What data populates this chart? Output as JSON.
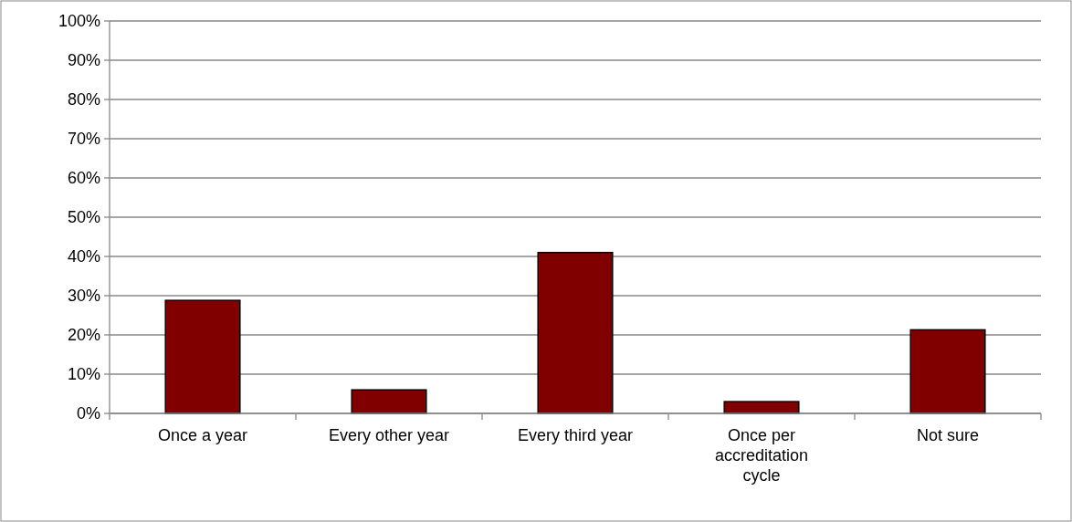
{
  "chart_data": {
    "type": "bar",
    "categories": [
      "Once a year",
      "Every other year",
      "Every third year",
      "Once per accreditation cycle",
      "Not sure"
    ],
    "values": [
      28.8,
      6.0,
      41.0,
      3.0,
      21.3
    ],
    "color": "#800000",
    "ylim": [
      0,
      100
    ],
    "yticks": [
      {
        "value": 0,
        "label": "0%"
      },
      {
        "value": 10,
        "label": "10%"
      },
      {
        "value": 20,
        "label": "20%"
      },
      {
        "value": 30,
        "label": "30%"
      },
      {
        "value": 40,
        "label": "40%"
      },
      {
        "value": 50,
        "label": "50%"
      },
      {
        "value": 60,
        "label": "60%"
      },
      {
        "value": 70,
        "label": "70%"
      },
      {
        "value": 80,
        "label": "80%"
      },
      {
        "value": 90,
        "label": "90%"
      },
      {
        "value": 100,
        "label": "100%"
      }
    ],
    "grid": "y"
  }
}
